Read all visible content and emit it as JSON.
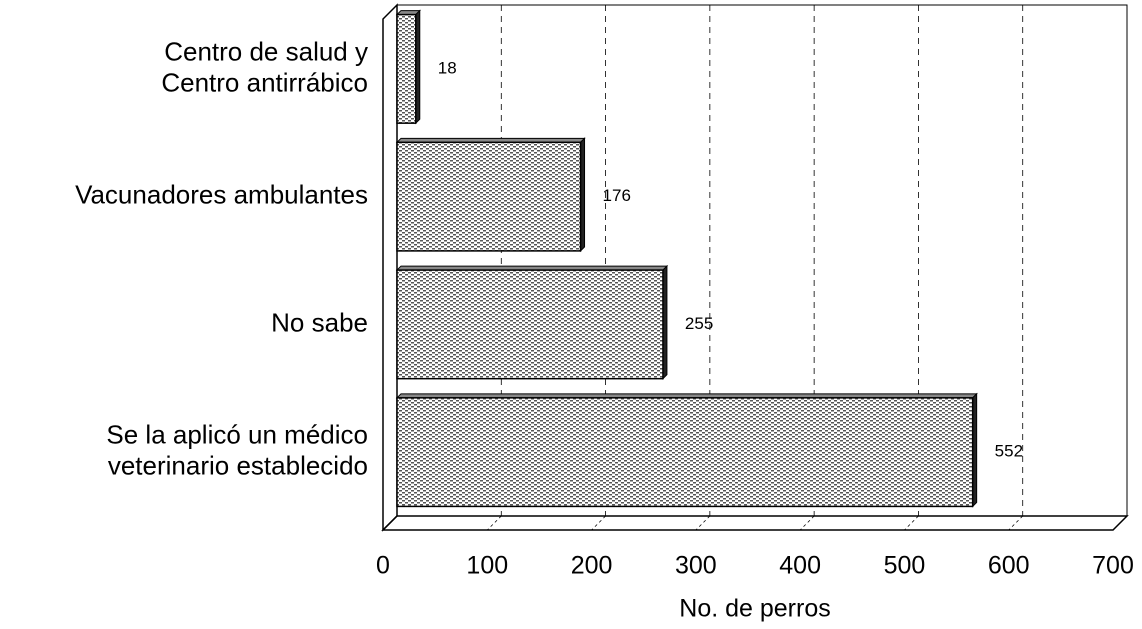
{
  "chart_data": {
    "type": "barh",
    "categories": [
      "Centro de salud y\nCentro antirrábico",
      "Vacunadores ambulantes",
      "No sabe",
      "Se la aplicó un médico\nveterinario establecido"
    ],
    "values": [
      18,
      176,
      255,
      552
    ],
    "color": "#555555",
    "xlabel": "No. de perros",
    "xlim": [
      0,
      700
    ],
    "xticks": [
      0,
      100,
      200,
      300,
      400,
      500,
      600,
      700
    ],
    "grid": true
  }
}
